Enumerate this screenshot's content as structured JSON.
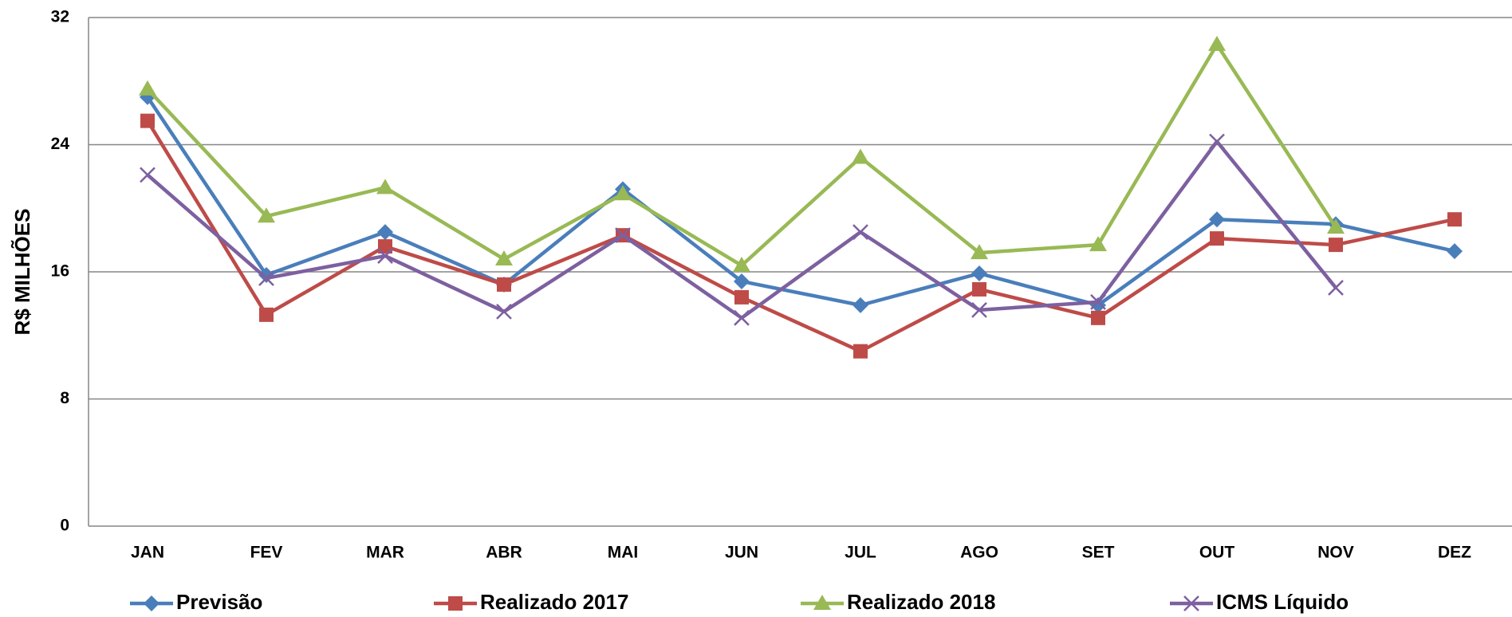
{
  "chart_data": {
    "type": "line",
    "y_label": "R$ MILHÕES",
    "categories": [
      "JAN",
      "FEV",
      "MAR",
      "ABR",
      "MAI",
      "JUN",
      "JUL",
      "AGO",
      "SET",
      "OUT",
      "NOV",
      "DEZ"
    ],
    "series": [
      {
        "name": "Previsão",
        "color": "#4a7ebb",
        "marker": "diamond",
        "values": [
          27.0,
          15.8,
          18.5,
          15.2,
          21.2,
          15.4,
          13.9,
          15.9,
          13.9,
          19.3,
          19.0,
          17.3
        ]
      },
      {
        "name": "Realizado 2017",
        "color": "#be4b48",
        "marker": "square",
        "values": [
          25.5,
          13.3,
          17.6,
          15.2,
          18.3,
          14.4,
          11.0,
          14.9,
          13.1,
          18.1,
          17.7,
          19.3
        ]
      },
      {
        "name": "Realizado 2018",
        "color": "#98b954",
        "marker": "triangle",
        "values": [
          27.5,
          19.5,
          21.3,
          16.8,
          20.9,
          16.4,
          23.2,
          17.2,
          17.7,
          30.3,
          18.8,
          null
        ]
      },
      {
        "name": "ICMS Líquido",
        "color": "#7d60a0",
        "marker": "x",
        "values": [
          22.1,
          15.6,
          17.0,
          13.5,
          18.3,
          13.1,
          18.5,
          13.6,
          14.1,
          24.2,
          15.0,
          null
        ]
      }
    ],
    "ylim": [
      0,
      32
    ],
    "yticks": [
      0,
      8,
      16,
      24,
      32
    ],
    "grid": true
  }
}
